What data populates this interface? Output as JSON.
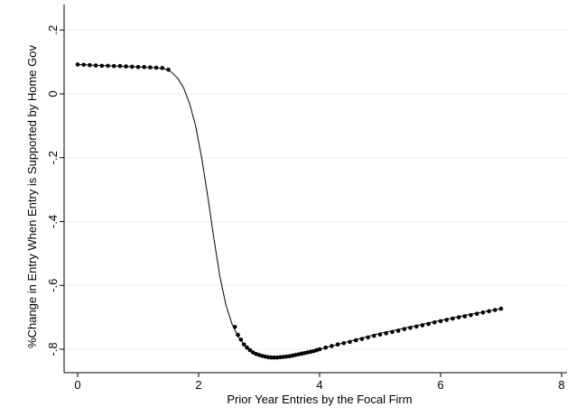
{
  "chart_data": {
    "type": "line",
    "title": "",
    "xlabel": "Prior Year Entries by the Focal Firm",
    "ylabel": "%Change in Entry When Entry is Supported by Home Gov",
    "xlim": [
      0,
      8
    ],
    "ylim": [
      -0.85,
      0.22
    ],
    "x_ticks": [
      0,
      2,
      4,
      6,
      8
    ],
    "x_tick_labels": [
      "0",
      "2",
      "4",
      "6",
      "8"
    ],
    "y_ticks": [
      0.2,
      0,
      -0.2,
      -0.4,
      -0.6,
      -0.8
    ],
    "y_tick_labels": [
      ".2",
      "0",
      "-.2",
      "-.4",
      "-.6",
      "-.8"
    ],
    "grid": true,
    "series": [
      {
        "line_color": "#000000",
        "marker_color": "#000000",
        "line": {
          "x": [
            0,
            0.5,
            1.0,
            1.3,
            1.45,
            1.55,
            1.65,
            1.75,
            1.85,
            1.95,
            2.05,
            2.15,
            2.25,
            2.35,
            2.45,
            2.55,
            2.65,
            2.75,
            2.85,
            2.95,
            3.05,
            3.15,
            3.3,
            3.45,
            3.6,
            3.8,
            4.0,
            4.3,
            4.6,
            5.0,
            5.5,
            6.0,
            6.5,
            7.0
          ],
          "y": [
            0.092,
            0.088,
            0.084,
            0.082,
            0.078,
            0.068,
            0.05,
            0.02,
            -0.03,
            -0.1,
            -0.2,
            -0.32,
            -0.45,
            -0.57,
            -0.66,
            -0.72,
            -0.76,
            -0.785,
            -0.805,
            -0.816,
            -0.822,
            -0.825,
            -0.825,
            -0.822,
            -0.818,
            -0.81,
            -0.8,
            -0.785,
            -0.77,
            -0.75,
            -0.73,
            -0.71,
            -0.69,
            -0.673
          ]
        },
        "markers": {
          "x": [
            0,
            0.1,
            0.2,
            0.3,
            0.4,
            0.5,
            0.6,
            0.7,
            0.8,
            0.9,
            1.0,
            1.1,
            1.2,
            1.3,
            1.4,
            1.5,
            2.6,
            2.65,
            2.7,
            2.75,
            2.8,
            2.85,
            2.9,
            2.95,
            3.0,
            3.05,
            3.1,
            3.15,
            3.2,
            3.25,
            3.3,
            3.35,
            3.4,
            3.45,
            3.5,
            3.55,
            3.6,
            3.65,
            3.7,
            3.75,
            3.8,
            3.85,
            3.9,
            3.95,
            4.0,
            4.1,
            4.2,
            4.3,
            4.4,
            4.5,
            4.6,
            4.7,
            4.8,
            4.9,
            5.0,
            5.1,
            5.2,
            5.3,
            5.4,
            5.5,
            5.6,
            5.7,
            5.8,
            5.9,
            6.0,
            6.1,
            6.2,
            6.3,
            6.4,
            6.5,
            6.6,
            6.7,
            6.8,
            6.9,
            7.0
          ],
          "y": [
            0.092,
            0.091,
            0.09,
            0.089,
            0.088,
            0.088,
            0.087,
            0.087,
            0.086,
            0.085,
            0.084,
            0.084,
            0.083,
            0.082,
            0.081,
            0.076,
            -0.73,
            -0.755,
            -0.77,
            -0.785,
            -0.795,
            -0.803,
            -0.81,
            -0.815,
            -0.818,
            -0.821,
            -0.823,
            -0.825,
            -0.826,
            -0.826,
            -0.826,
            -0.825,
            -0.824,
            -0.823,
            -0.822,
            -0.82,
            -0.818,
            -0.816,
            -0.814,
            -0.812,
            -0.81,
            -0.808,
            -0.806,
            -0.803,
            -0.8,
            -0.795,
            -0.79,
            -0.785,
            -0.781,
            -0.777,
            -0.772,
            -0.768,
            -0.763,
            -0.758,
            -0.754,
            -0.75,
            -0.746,
            -0.742,
            -0.737,
            -0.733,
            -0.729,
            -0.725,
            -0.721,
            -0.716,
            -0.712,
            -0.708,
            -0.704,
            -0.7,
            -0.697,
            -0.693,
            -0.689,
            -0.685,
            -0.681,
            -0.677,
            -0.673
          ]
        }
      }
    ]
  }
}
